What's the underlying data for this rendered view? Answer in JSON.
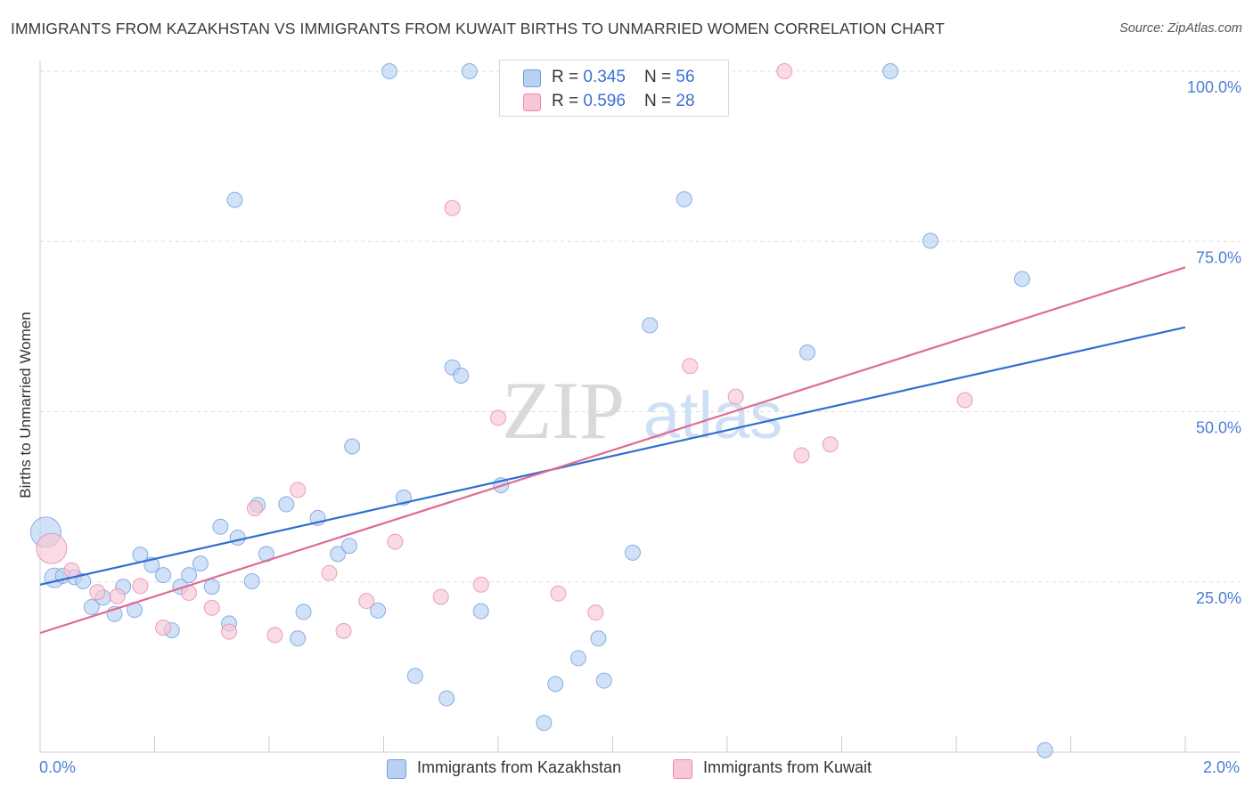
{
  "title": "IMMIGRANTS FROM KAZAKHSTAN VS IMMIGRANTS FROM KUWAIT BIRTHS TO UNMARRIED WOMEN CORRELATION CHART",
  "source": "Source: ZipAtlas.com",
  "watermark": {
    "part1": "ZIP",
    "part2": "atlas"
  },
  "colors": {
    "blue_fill": "#b8d1f3",
    "blue_stroke": "#6f9ee0",
    "blue_line": "#2f6fd0",
    "pink_fill": "#f8c6d6",
    "pink_stroke": "#e98aa8",
    "pink_line": "#e06a93",
    "grid": "#dddddd",
    "axis_text": "#4a7fd6"
  },
  "legend_top": [
    {
      "r_label": "R = ",
      "r_value": "0.345",
      "n_label": "N = ",
      "n_value": "56"
    },
    {
      "r_label": "R = ",
      "r_value": "0.596",
      "n_label": "N = ",
      "n_value": "28"
    }
  ],
  "chart_data": {
    "type": "scatter",
    "title": "IMMIGRANTS FROM KAZAKHSTAN VS IMMIGRANTS FROM KUWAIT BIRTHS TO UNMARRIED WOMEN CORRELATION CHART",
    "xlabel": "",
    "ylabel": "Births to Unmarried Women",
    "xlim": [
      0,
      2.0
    ],
    "ylim": [
      0,
      100
    ],
    "x_tick_labels": [
      "0.0%",
      "2.0%"
    ],
    "y_ticks": [
      25,
      50,
      75,
      100
    ],
    "y_tick_labels": [
      "25.0%",
      "50.0%",
      "75.0%",
      "100.0%"
    ],
    "grid": true,
    "legend_position": "top-center",
    "series": [
      {
        "name": "Immigrants from Kazakhstan",
        "color": "blue",
        "R": 0.345,
        "N": 56,
        "trend": {
          "x": [
            0.0,
            2.0
          ],
          "y": [
            24.6,
            62.4
          ]
        },
        "points": [
          {
            "x": 0.01,
            "y": 32.3,
            "s": 3
          },
          {
            "x": 0.025,
            "y": 25.6,
            "s": 2
          },
          {
            "x": 0.04,
            "y": 25.9,
            "s": 1
          },
          {
            "x": 0.06,
            "y": 25.7,
            "s": 1
          },
          {
            "x": 0.075,
            "y": 25.1,
            "s": 1
          },
          {
            "x": 0.09,
            "y": 21.3,
            "s": 1
          },
          {
            "x": 0.11,
            "y": 22.7,
            "s": 1
          },
          {
            "x": 0.13,
            "y": 20.3,
            "s": 1
          },
          {
            "x": 0.145,
            "y": 24.3,
            "s": 1
          },
          {
            "x": 0.165,
            "y": 20.9,
            "s": 1
          },
          {
            "x": 0.175,
            "y": 29.0,
            "s": 1
          },
          {
            "x": 0.195,
            "y": 27.5,
            "s": 1
          },
          {
            "x": 0.215,
            "y": 26.0,
            "s": 1
          },
          {
            "x": 0.23,
            "y": 17.9,
            "s": 1
          },
          {
            "x": 0.245,
            "y": 24.3,
            "s": 1
          },
          {
            "x": 0.26,
            "y": 26.0,
            "s": 1
          },
          {
            "x": 0.28,
            "y": 27.7,
            "s": 1
          },
          {
            "x": 0.3,
            "y": 24.3,
            "s": 1
          },
          {
            "x": 0.315,
            "y": 33.1,
            "s": 1
          },
          {
            "x": 0.33,
            "y": 18.9,
            "s": 1
          },
          {
            "x": 0.345,
            "y": 31.5,
            "s": 1
          },
          {
            "x": 0.37,
            "y": 25.1,
            "s": 1
          },
          {
            "x": 0.38,
            "y": 36.3,
            "s": 1
          },
          {
            "x": 0.395,
            "y": 29.1,
            "s": 1
          },
          {
            "x": 0.43,
            "y": 36.4,
            "s": 1
          },
          {
            "x": 0.45,
            "y": 16.7,
            "s": 1
          },
          {
            "x": 0.46,
            "y": 20.6,
            "s": 1
          },
          {
            "x": 0.485,
            "y": 34.4,
            "s": 1
          },
          {
            "x": 0.52,
            "y": 29.1,
            "s": 1
          },
          {
            "x": 0.54,
            "y": 30.3,
            "s": 1
          },
          {
            "x": 0.545,
            "y": 44.9,
            "s": 1
          },
          {
            "x": 0.59,
            "y": 20.8,
            "s": 1
          },
          {
            "x": 0.635,
            "y": 37.4,
            "s": 1
          },
          {
            "x": 0.655,
            "y": 11.2,
            "s": 1
          },
          {
            "x": 0.71,
            "y": 7.9,
            "s": 1
          },
          {
            "x": 0.72,
            "y": 56.5,
            "s": 1
          },
          {
            "x": 0.735,
            "y": 55.3,
            "s": 1
          },
          {
            "x": 0.77,
            "y": 20.7,
            "s": 1
          },
          {
            "x": 0.805,
            "y": 39.2,
            "s": 1
          },
          {
            "x": 0.88,
            "y": 4.3,
            "s": 1
          },
          {
            "x": 0.94,
            "y": 13.8,
            "s": 1
          },
          {
            "x": 0.975,
            "y": 16.7,
            "s": 1
          },
          {
            "x": 0.985,
            "y": 10.5,
            "s": 1
          },
          {
            "x": 1.035,
            "y": 29.3,
            "s": 1
          },
          {
            "x": 1.065,
            "y": 62.7,
            "s": 1
          },
          {
            "x": 1.34,
            "y": 58.7,
            "s": 1
          },
          {
            "x": 1.555,
            "y": 75.1,
            "s": 1
          },
          {
            "x": 1.715,
            "y": 69.5,
            "s": 1
          },
          {
            "x": 1.755,
            "y": 0.3,
            "s": 1
          },
          {
            "x": 0.61,
            "y": 100.0,
            "s": 1
          },
          {
            "x": 0.75,
            "y": 100.0,
            "s": 1
          },
          {
            "x": 0.34,
            "y": 81.1,
            "s": 1
          },
          {
            "x": 1.125,
            "y": 81.2,
            "s": 1
          },
          {
            "x": 1.485,
            "y": 100.0,
            "s": 1
          },
          {
            "x": 0.9,
            "y": 10.0,
            "s": 1
          },
          {
            "x": 1.04,
            "y": 100.0,
            "s": 1
          }
        ]
      },
      {
        "name": "Immigrants from Kuwait",
        "color": "pink",
        "R": 0.596,
        "N": 28,
        "trend": {
          "x": [
            0.0,
            2.0
          ],
          "y": [
            17.5,
            71.2
          ]
        },
        "points": [
          {
            "x": 0.02,
            "y": 29.9,
            "s": 3
          },
          {
            "x": 0.055,
            "y": 26.7,
            "s": 1
          },
          {
            "x": 0.1,
            "y": 23.5,
            "s": 1
          },
          {
            "x": 0.135,
            "y": 22.9,
            "s": 1
          },
          {
            "x": 0.175,
            "y": 24.4,
            "s": 1
          },
          {
            "x": 0.215,
            "y": 18.3,
            "s": 1
          },
          {
            "x": 0.26,
            "y": 23.4,
            "s": 1
          },
          {
            "x": 0.3,
            "y": 21.2,
            "s": 1
          },
          {
            "x": 0.33,
            "y": 17.7,
            "s": 1
          },
          {
            "x": 0.375,
            "y": 35.8,
            "s": 1
          },
          {
            "x": 0.41,
            "y": 17.2,
            "s": 1
          },
          {
            "x": 0.45,
            "y": 38.5,
            "s": 1
          },
          {
            "x": 0.505,
            "y": 26.3,
            "s": 1
          },
          {
            "x": 0.53,
            "y": 17.8,
            "s": 1
          },
          {
            "x": 0.57,
            "y": 22.2,
            "s": 1
          },
          {
            "x": 0.62,
            "y": 30.9,
            "s": 1
          },
          {
            "x": 0.7,
            "y": 22.8,
            "s": 1
          },
          {
            "x": 0.72,
            "y": 79.9,
            "s": 1
          },
          {
            "x": 0.77,
            "y": 24.6,
            "s": 1
          },
          {
            "x": 0.8,
            "y": 49.1,
            "s": 1
          },
          {
            "x": 0.905,
            "y": 23.3,
            "s": 1
          },
          {
            "x": 0.97,
            "y": 20.5,
            "s": 1
          },
          {
            "x": 1.135,
            "y": 56.7,
            "s": 1
          },
          {
            "x": 1.215,
            "y": 52.2,
            "s": 1
          },
          {
            "x": 1.3,
            "y": 100.0,
            "s": 1
          },
          {
            "x": 1.33,
            "y": 43.6,
            "s": 1
          },
          {
            "x": 1.38,
            "y": 45.2,
            "s": 1
          },
          {
            "x": 1.615,
            "y": 51.7,
            "s": 1
          }
        ]
      }
    ]
  },
  "legend_bottom": [
    {
      "label": "Immigrants from Kazakhstan"
    },
    {
      "label": "Immigrants from Kuwait"
    }
  ]
}
